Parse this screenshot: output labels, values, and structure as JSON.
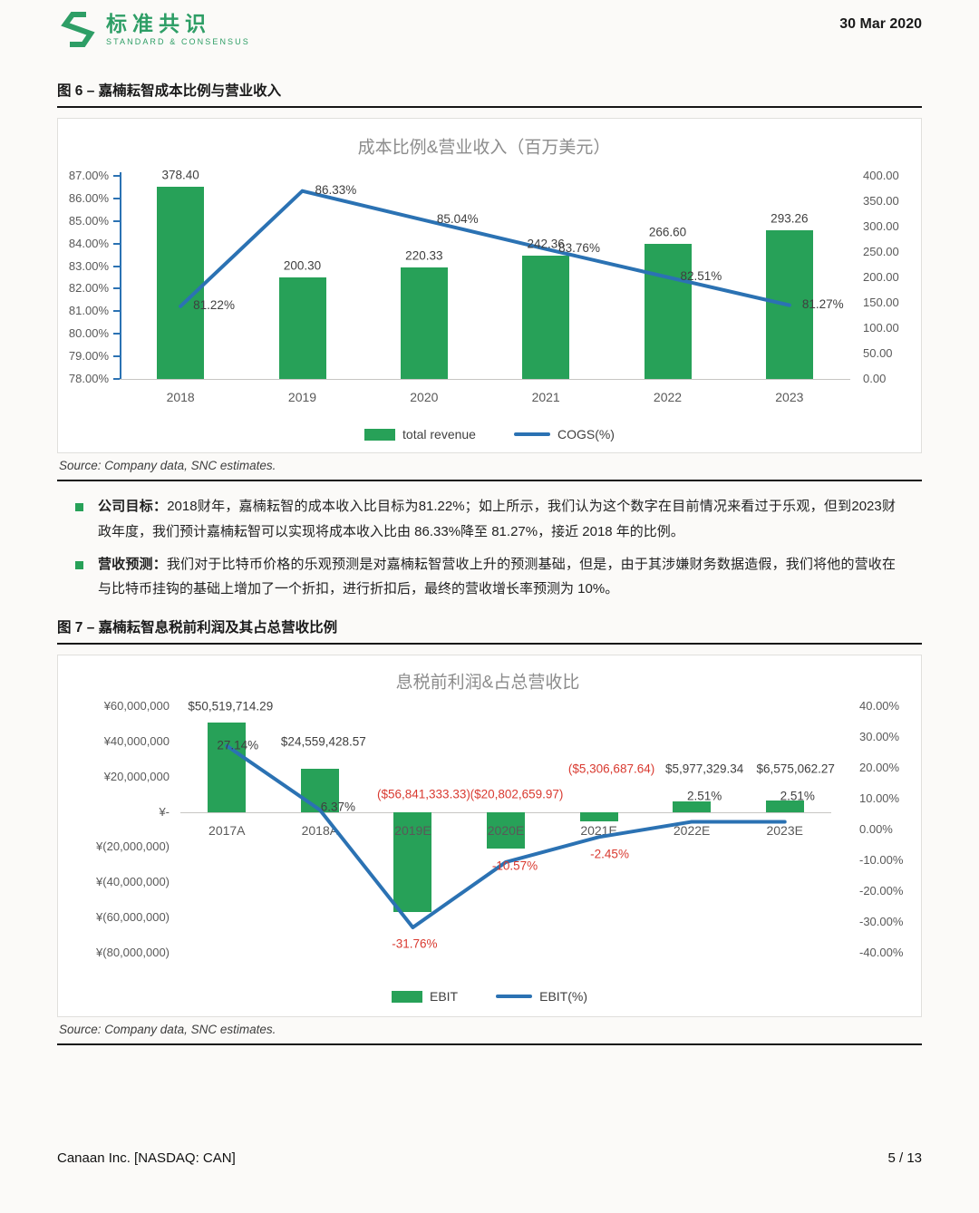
{
  "header": {
    "logo_cn": "标准共识",
    "logo_en": "STANDARD & CONSENSUS",
    "date": "30 Mar 2020"
  },
  "figure6": {
    "heading": "图 6 – 嘉楠耘智成本比例与营业收入",
    "source": "Source: Company data, SNC estimates."
  },
  "figure7": {
    "heading": "图 7 – 嘉楠耘智息税前利润及其占总营收比例",
    "source": "Source: Company data, SNC estimates."
  },
  "bullets": [
    {
      "label": "公司目标：",
      "text": "2018财年，嘉楠耘智的成本收入比目标为81.22%；如上所示，我们认为这个数字在目前情况来看过于乐观，但到2023财政年度，我们预计嘉楠耘智可以实现将成本收入比由 86.33%降至 81.27%，接近 2018 年的比例。"
    },
    {
      "label": "营收预测：",
      "text": "我们对于比特币价格的乐观预测是对嘉楠耘智营收上升的预测基础，但是，由于其涉嫌财务数据造假，我们将他的营收在与比特币挂钩的基础上增加了一个折扣，进行折扣后，最终的营收增长率预测为 10%。"
    }
  ],
  "footer": {
    "left": "Canaan Inc. [NASDAQ: CAN]",
    "right": "5 / 13"
  },
  "colors": {
    "green": "#27a158",
    "blue": "#2b72b3",
    "red": "#d93a30",
    "tick": "#595959",
    "title": "#8c8c8c",
    "label": "#3f3f3f"
  },
  "chart_data": [
    {
      "type": "bar+line",
      "title": "成本比例&营业收入（百万美元）",
      "categories": [
        "2018",
        "2019",
        "2020",
        "2021",
        "2022",
        "2023"
      ],
      "series": [
        {
          "name": "total revenue",
          "type": "bar",
          "axis": "right",
          "values": [
            378.4,
            200.3,
            220.33,
            242.36,
            266.6,
            293.26
          ],
          "labels": [
            "378.40",
            "200.30",
            "220.33",
            "242.36",
            "266.60",
            "293.26"
          ]
        },
        {
          "name": "COGS(%)",
          "type": "line",
          "axis": "left",
          "values": [
            81.22,
            86.33,
            85.04,
            83.76,
            82.51,
            81.27
          ],
          "labels": [
            "81.22%",
            "86.33%",
            "85.04%",
            "83.76%",
            "82.51%",
            "81.27%"
          ]
        }
      ],
      "left_axis": {
        "min": 78,
        "max": 87,
        "ticks": [
          "87.00%",
          "86.00%",
          "85.00%",
          "84.00%",
          "83.00%",
          "82.00%",
          "81.00%",
          "80.00%",
          "79.00%",
          "78.00%"
        ]
      },
      "right_axis": {
        "min": 0,
        "max": 400,
        "ticks": [
          "400.00",
          "350.00",
          "300.00",
          "250.00",
          "200.00",
          "150.00",
          "100.00",
          "50.00",
          "0.00"
        ]
      },
      "legend": [
        {
          "label": "total revenue",
          "type": "bar"
        },
        {
          "label": "COGS(%)",
          "type": "line"
        }
      ],
      "legend_position": "bottom-center",
      "grid": false
    },
    {
      "type": "bar+line",
      "title": "息税前利润&占总营收比",
      "categories": [
        "2017A",
        "2018A",
        "2019E",
        "2020E",
        "2021E",
        "2022E",
        "2023E"
      ],
      "series": [
        {
          "name": "EBIT",
          "type": "bar",
          "axis": "left",
          "values": [
            50519714.29,
            24559428.57,
            -56841333.33,
            -20802659.97,
            -5306687.64,
            5977329.34,
            6575062.27
          ],
          "labels": [
            "$50,519,714.29",
            "$24,559,428.57",
            "($56,841,333.33)",
            "($20,802,659.97)",
            "($5,306,687.64)",
            "$5,977,329.34",
            "$6,575,062.27"
          ]
        },
        {
          "name": "EBIT(%)",
          "type": "line",
          "axis": "right",
          "values": [
            27.14,
            6.37,
            -31.76,
            -10.57,
            -2.45,
            2.51,
            2.51
          ],
          "labels": [
            "27.14%",
            "6.37%",
            "-31.76%",
            "-10.57%",
            "-2.45%",
            "2.51%",
            "2.51%"
          ]
        }
      ],
      "left_axis": {
        "min": -80000000,
        "max": 60000000,
        "ticks": [
          "¥60,000,000",
          "¥40,000,000",
          "¥20,000,000",
          "¥-",
          "¥(20,000,000)",
          "¥(40,000,000)",
          "¥(60,000,000)",
          "¥(80,000,000)"
        ]
      },
      "right_axis": {
        "min": -40,
        "max": 40,
        "ticks": [
          "40.00%",
          "30.00%",
          "20.00%",
          "10.00%",
          "0.00%",
          "-10.00%",
          "-20.00%",
          "-30.00%",
          "-40.00%"
        ]
      },
      "legend": [
        {
          "label": "EBIT",
          "type": "bar"
        },
        {
          "label": "EBIT(%)",
          "type": "line"
        }
      ],
      "legend_position": "bottom-center",
      "grid": false,
      "negative_label_color": "red"
    }
  ]
}
